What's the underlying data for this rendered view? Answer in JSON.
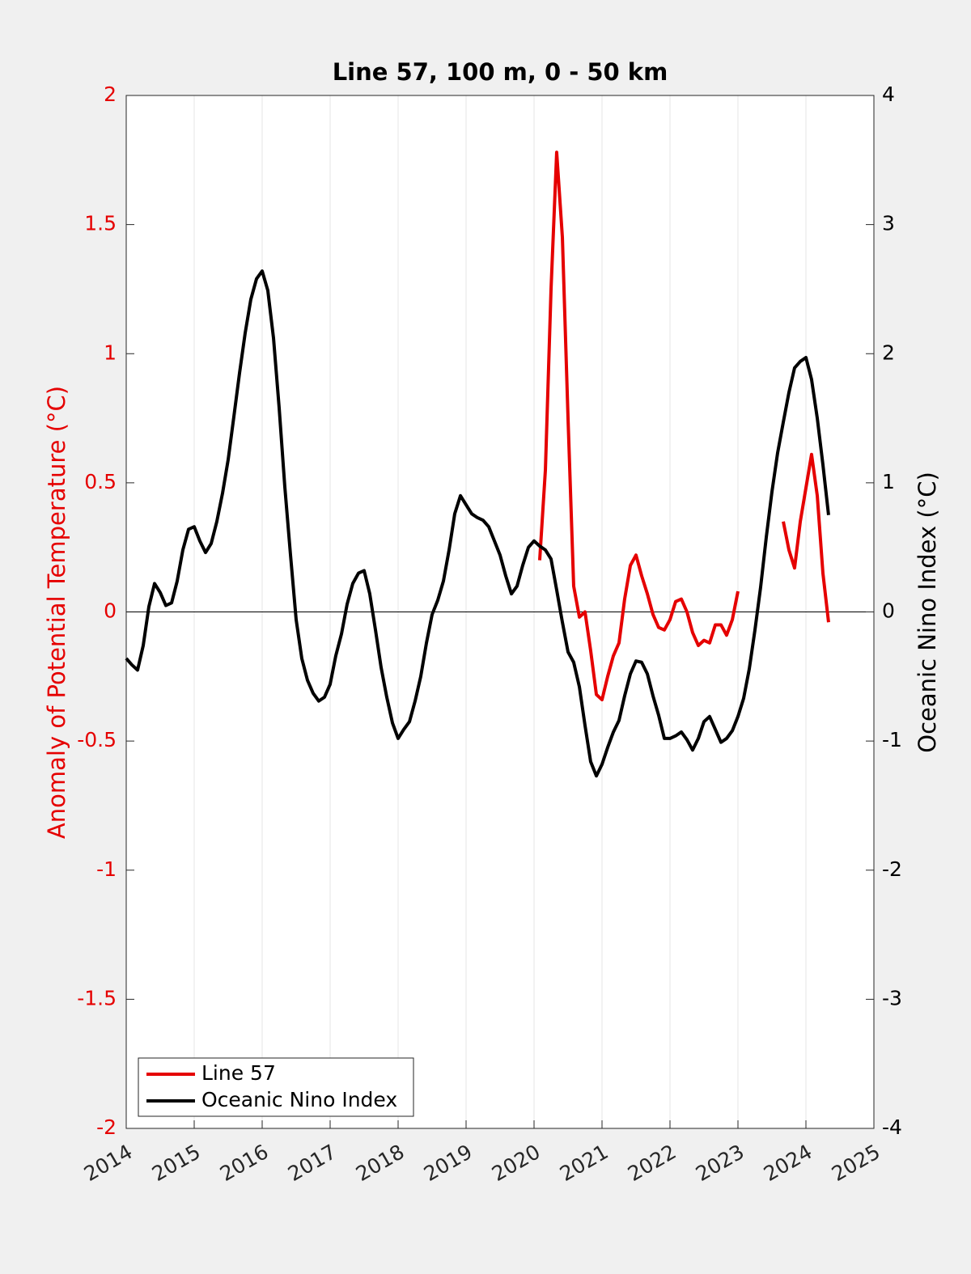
{
  "chart_data": {
    "type": "line",
    "title": "Line 57, 100 m, 0 - 50 km",
    "ylabel": "Anomaly of Potential Temperature (°C)",
    "y2label": "Oceanic Nino Index (°C)",
    "x": [
      2014,
      2014.083,
      2014.167,
      2014.25,
      2014.333,
      2014.417,
      2014.5,
      2014.583,
      2014.667,
      2014.75,
      2014.833,
      2014.917,
      2015,
      2015.083,
      2015.167,
      2015.25,
      2015.333,
      2015.417,
      2015.5,
      2015.583,
      2015.667,
      2015.75,
      2015.833,
      2015.917,
      2016,
      2016.083,
      2016.167,
      2016.25,
      2016.333,
      2016.417,
      2016.5,
      2016.583,
      2016.667,
      2016.75,
      2016.833,
      2016.917,
      2017,
      2017.083,
      2017.167,
      2017.25,
      2017.333,
      2017.417,
      2017.5,
      2017.583,
      2017.667,
      2017.75,
      2017.833,
      2017.917,
      2018,
      2018.083,
      2018.167,
      2018.25,
      2018.333,
      2018.417,
      2018.5,
      2018.583,
      2018.667,
      2018.75,
      2018.833,
      2018.917,
      2019,
      2019.083,
      2019.167,
      2019.25,
      2019.333,
      2019.417,
      2019.5,
      2019.583,
      2019.667,
      2019.75,
      2019.833,
      2019.917,
      2020,
      2020.083,
      2020.167,
      2020.25,
      2020.333,
      2020.417,
      2020.5,
      2020.583,
      2020.667,
      2020.75,
      2020.833,
      2020.917,
      2021,
      2021.083,
      2021.167,
      2021.25,
      2021.333,
      2021.417,
      2021.5,
      2021.583,
      2021.667,
      2021.75,
      2021.833,
      2021.917,
      2022,
      2022.083,
      2022.167,
      2022.25,
      2022.333,
      2022.417,
      2022.5,
      2022.583,
      2022.667,
      2022.75,
      2022.833,
      2022.917,
      2023,
      2023.083,
      2023.167,
      2023.25,
      2023.333,
      2023.417,
      2023.5,
      2023.583,
      2023.667,
      2023.75,
      2023.833,
      2023.917,
      2024,
      2024.083,
      2024.167,
      2024.25,
      2024.333
    ],
    "series": [
      {
        "name": "Line 57",
        "color": "#e50000",
        "axis": "y",
        "values": [
          null,
          null,
          null,
          null,
          null,
          null,
          null,
          null,
          null,
          null,
          null,
          null,
          null,
          null,
          null,
          null,
          null,
          null,
          null,
          null,
          null,
          null,
          null,
          null,
          null,
          null,
          null,
          null,
          null,
          null,
          null,
          null,
          null,
          null,
          null,
          null,
          null,
          null,
          null,
          null,
          null,
          null,
          null,
          null,
          null,
          null,
          null,
          null,
          null,
          null,
          null,
          null,
          null,
          null,
          null,
          null,
          null,
          null,
          null,
          null,
          null,
          null,
          null,
          null,
          null,
          null,
          null,
          null,
          null,
          null,
          null,
          null,
          null,
          0.2,
          0.55,
          1.25,
          1.78,
          1.45,
          0.75,
          0.1,
          -0.02,
          0,
          -0.15,
          -0.32,
          -0.34,
          -0.25,
          -0.17,
          -0.12,
          0.05,
          0.18,
          0.22,
          0.14,
          0.07,
          -0.01,
          -0.06,
          -0.07,
          -0.03,
          0.04,
          0.05,
          0,
          -0.08,
          -0.13,
          -0.11,
          -0.12,
          -0.05,
          -0.05,
          -0.09,
          -0.03,
          0.08,
          null,
          null,
          null,
          null,
          null,
          null,
          null,
          0.35,
          0.24,
          0.17,
          0.35,
          0.48,
          0.61,
          0.45,
          0.15,
          -0.04
        ]
      },
      {
        "name": "Oceanic Nino Index",
        "color": "#000000",
        "axis": "y2",
        "values": [
          -0.36,
          -0.41,
          -0.45,
          -0.26,
          0.04,
          0.22,
          0.15,
          0.05,
          0.07,
          0.24,
          0.48,
          0.64,
          0.66,
          0.55,
          0.46,
          0.53,
          0.7,
          0.92,
          1.18,
          1.51,
          1.85,
          2.16,
          2.42,
          2.58,
          2.64,
          2.49,
          2.12,
          1.58,
          0.97,
          0.44,
          -0.06,
          -0.36,
          -0.53,
          -0.63,
          -0.69,
          -0.66,
          -0.56,
          -0.34,
          -0.17,
          0.06,
          0.22,
          0.3,
          0.32,
          0.14,
          -0.14,
          -0.43,
          -0.66,
          -0.86,
          -0.98,
          -0.91,
          -0.85,
          -0.69,
          -0.5,
          -0.24,
          -0.02,
          0.09,
          0.24,
          0.48,
          0.76,
          0.9,
          0.83,
          0.76,
          0.73,
          0.71,
          0.66,
          0.55,
          0.44,
          0.28,
          0.14,
          0.2,
          0.36,
          0.5,
          0.55,
          0.51,
          0.48,
          0.41,
          0.17,
          -0.08,
          -0.31,
          -0.39,
          -0.58,
          -0.88,
          -1.16,
          -1.27,
          -1.18,
          -1.05,
          -0.93,
          -0.84,
          -0.65,
          -0.48,
          -0.38,
          -0.39,
          -0.48,
          -0.65,
          -0.8,
          -0.98,
          -0.98,
          -0.96,
          -0.93,
          -0.99,
          -1.07,
          -0.98,
          -0.85,
          -0.81,
          -0.91,
          -1.01,
          -0.98,
          -0.92,
          -0.81,
          -0.67,
          -0.44,
          -0.14,
          0.19,
          0.58,
          0.93,
          1.23,
          1.47,
          1.7,
          1.89,
          1.94,
          1.97,
          1.8,
          1.5,
          1.14,
          0.75
        ]
      }
    ],
    "xlim": [
      2014,
      2025
    ],
    "xticks": [
      2014,
      2015,
      2016,
      2017,
      2018,
      2019,
      2020,
      2021,
      2022,
      2023,
      2024,
      2025
    ],
    "ylim": [
      -2,
      2
    ],
    "yticks": [
      -2,
      -1.5,
      -1,
      -0.5,
      0,
      0.5,
      1,
      1.5,
      2
    ],
    "y2lim": [
      -4,
      4
    ],
    "y2ticks": [
      -4,
      -3,
      -2,
      -1,
      0,
      1,
      2,
      3,
      4
    ],
    "grid": "x",
    "legend": "southwest"
  }
}
